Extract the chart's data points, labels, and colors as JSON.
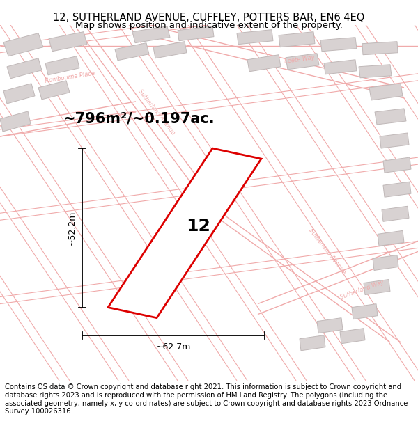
{
  "title_line1": "12, SUTHERLAND AVENUE, CUFFLEY, POTTERS BAR, EN6 4EQ",
  "title_line2": "Map shows position and indicative extent of the property.",
  "footer_text": "Contains OS data © Crown copyright and database right 2021. This information is subject to Crown copyright and database rights 2023 and is reproduced with the permission of HM Land Registry. The polygons (including the associated geometry, namely x, y co-ordinates) are subject to Crown copyright and database rights 2023 Ordnance Survey 100026316.",
  "area_label": "~796m²/~0.197ac.",
  "plot_number": "12",
  "dim_width": "~62.7m",
  "dim_height": "~52.2m",
  "road_color": "#f0aaaa",
  "plot_outline_color": "#dd0000",
  "building_face": "#d8d2d2",
  "building_edge": "#c0b8b8",
  "title_fontsize": 10.5,
  "subtitle_fontsize": 9.5,
  "footer_fontsize": 7.2,
  "map_bg": "#f7f4f4"
}
